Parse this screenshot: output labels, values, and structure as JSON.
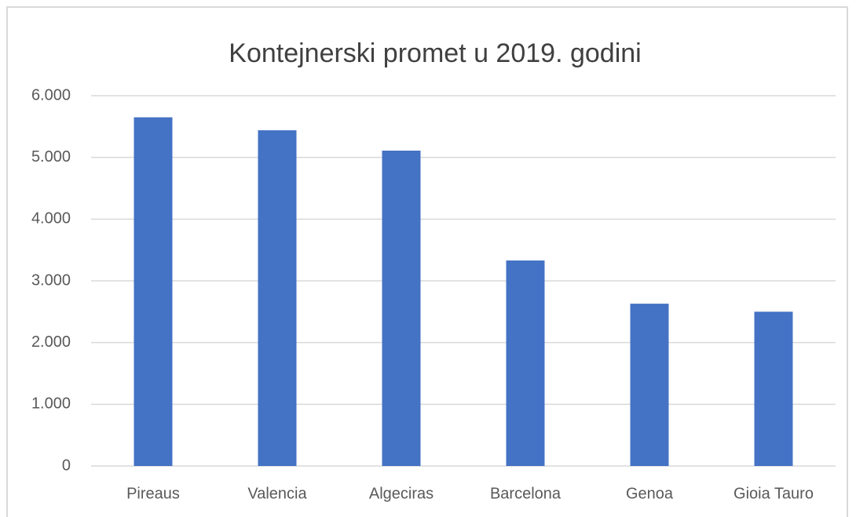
{
  "chart_data": {
    "type": "bar",
    "title": "Kontejnerski promet u 2019. godini",
    "categories": [
      "Pireaus",
      "Valencia",
      "Algeciras",
      "Barcelona",
      "Genoa",
      "Gioia Tauro"
    ],
    "values": [
      5650,
      5440,
      5110,
      3330,
      2630,
      2500
    ],
    "color": "#4472c4",
    "ylim": [
      0,
      6000
    ],
    "yticks": [
      0,
      {
        "value": 1000,
        "label": "1.000"
      },
      {
        "value": 2000,
        "label": "2.000"
      },
      {
        "value": 3000,
        "label": "3.000"
      },
      {
        "value": 4000,
        "label": "4.000"
      },
      {
        "value": 5000,
        "label": "5.000"
      },
      {
        "value": 6000,
        "label": "6.000"
      }
    ],
    "grid": true
  }
}
